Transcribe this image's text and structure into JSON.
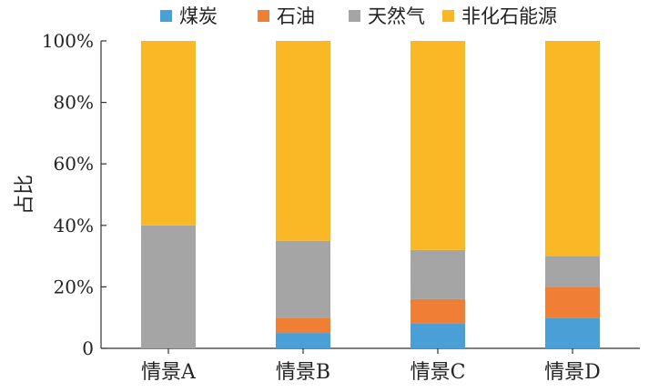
{
  "chart_data": {
    "type": "bar",
    "stacked": true,
    "categories": [
      "情景A",
      "情景B",
      "情景C",
      "情景D"
    ],
    "series": [
      {
        "name": "煤炭",
        "color": "#4a9fd6",
        "values": [
          0,
          5,
          8,
          10
        ]
      },
      {
        "name": "石油",
        "color": "#f07f35",
        "values": [
          0,
          5,
          8,
          10
        ]
      },
      {
        "name": "天然气",
        "color": "#a5a5a5",
        "values": [
          40,
          25,
          16,
          10
        ]
      },
      {
        "name": "非化石能源",
        "color": "#fbb826",
        "values": [
          60,
          65,
          68,
          70
        ]
      }
    ],
    "ylabel": "占比",
    "ylim": [
      0,
      100
    ],
    "yticks": [
      "0",
      "20%",
      "40%",
      "60%",
      "80%",
      "100%"
    ],
    "legend_position": "top",
    "grid": false
  }
}
